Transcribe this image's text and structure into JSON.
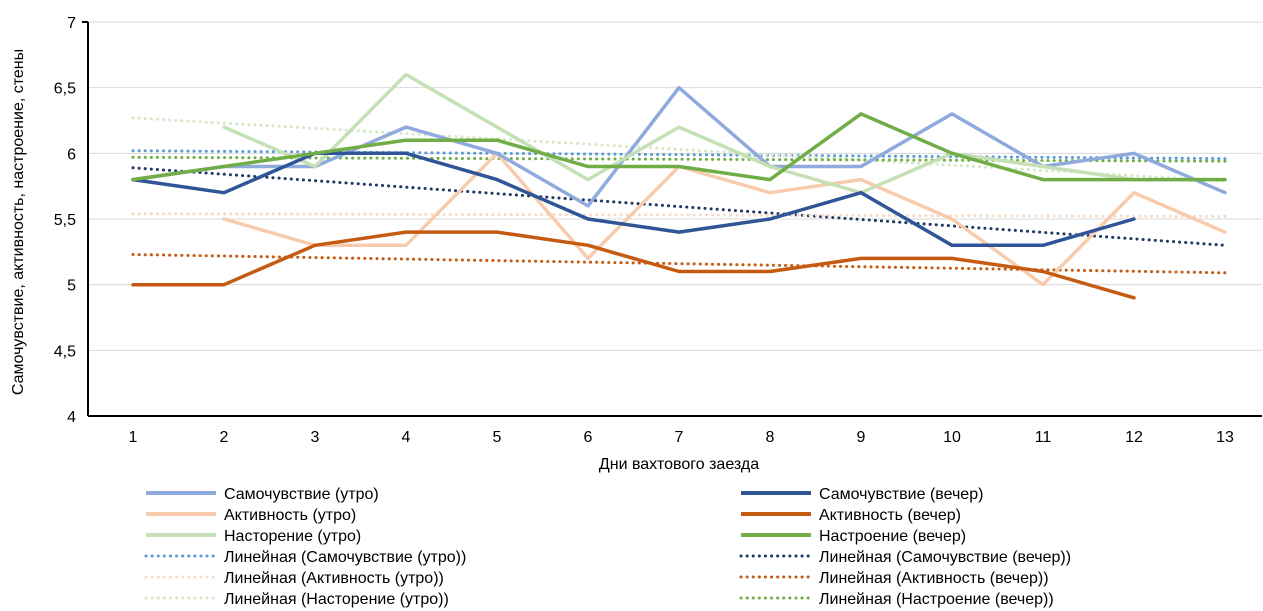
{
  "chart_data": {
    "type": "line",
    "title": "",
    "xlabel": "Дни вахтового заезда",
    "ylabel": "Самочувствие, активность, настроение, стены",
    "ylim": [
      4,
      7
    ],
    "y_ticks": [
      "4",
      "4,5",
      "5",
      "5,5",
      "6",
      "6,5",
      "7"
    ],
    "categories": [
      "1",
      "2",
      "3",
      "4",
      "5",
      "6",
      "7",
      "8",
      "9",
      "10",
      "11",
      "12",
      "13"
    ],
    "grid": "horizontal",
    "legend_position": "bottom",
    "series": [
      {
        "name": "Самочувствие (утро)",
        "color": "#8FAADC",
        "style": "solid",
        "x": [
          1,
          2,
          3,
          4,
          5,
          6,
          7,
          8,
          9,
          10,
          11,
          12,
          13
        ],
        "values": [
          5.8,
          5.9,
          5.9,
          6.2,
          6.0,
          5.6,
          6.5,
          5.9,
          5.9,
          6.3,
          5.9,
          6.0,
          5.7
        ]
      },
      {
        "name": "Самочувствие (вечер)",
        "color": "#2F5597",
        "style": "solid",
        "x": [
          1,
          2,
          3,
          4,
          5,
          6,
          7,
          8,
          9,
          10,
          11,
          12
        ],
        "values": [
          5.8,
          5.7,
          6.0,
          6.0,
          5.8,
          5.5,
          5.4,
          5.5,
          5.7,
          5.3,
          5.3,
          5.5
        ]
      },
      {
        "name": "Активность (утро)",
        "color": "#F8CBAD",
        "style": "solid",
        "x": [
          2,
          3,
          4,
          5,
          6,
          7,
          8,
          9,
          10,
          11,
          12,
          13
        ],
        "values": [
          5.5,
          5.3,
          5.3,
          6.0,
          5.2,
          5.9,
          5.7,
          5.8,
          5.5,
          5.0,
          5.7,
          5.4
        ]
      },
      {
        "name": "Активность (вечер)",
        "color": "#C55A11",
        "style": "solid",
        "x": [
          1,
          2,
          3,
          4,
          5,
          6,
          7,
          8,
          9,
          10,
          11,
          12
        ],
        "values": [
          5.0,
          5.0,
          5.3,
          5.4,
          5.4,
          5.3,
          5.1,
          5.1,
          5.2,
          5.2,
          5.1,
          4.9
        ]
      },
      {
        "name": "Насторение (утро)",
        "color": "#C5E0B4",
        "style": "solid",
        "x": [
          2,
          3,
          4,
          5,
          6,
          7,
          8,
          9,
          10,
          11,
          12,
          13
        ],
        "values": [
          6.2,
          5.9,
          6.6,
          6.2,
          5.8,
          6.2,
          5.9,
          5.7,
          6.0,
          5.9,
          5.8,
          5.8
        ]
      },
      {
        "name": "Настроение (вечер)",
        "color": "#70AD47",
        "style": "solid",
        "x": [
          1,
          2,
          3,
          4,
          5,
          6,
          7,
          8,
          9,
          10,
          11,
          12,
          13
        ],
        "values": [
          5.8,
          5.9,
          6.0,
          6.1,
          6.1,
          5.9,
          5.9,
          5.8,
          6.3,
          6.0,
          5.8,
          5.8,
          5.8
        ]
      },
      {
        "name": "Линейная (Самочувствие (утро))",
        "color": "#5B9BD5",
        "style": "dotted",
        "x": [
          1,
          13
        ],
        "values": [
          6.02,
          5.96
        ]
      },
      {
        "name": "Линейная (Самочувствие (вечер))",
        "color": "#203864",
        "style": "dotted",
        "x": [
          1,
          13
        ],
        "values": [
          5.89,
          5.3
        ]
      },
      {
        "name": "Линейная (Активность (утро))",
        "color": "#F4DCC8",
        "style": "dotted",
        "x": [
          1,
          13
        ],
        "values": [
          5.54,
          5.52
        ]
      },
      {
        "name": "Линейная (Активность (вечер))",
        "color": "#C55A11",
        "style": "dotted",
        "x": [
          1,
          13
        ],
        "values": [
          5.23,
          5.09
        ]
      },
      {
        "name": "Линейная (Насторение (утро))",
        "color": "#D5E8C8",
        "style": "dotted",
        "x": [
          1,
          13
        ],
        "values": [
          6.27,
          5.79
        ]
      },
      {
        "name": "Линейная (Настроение (вечер))",
        "color": "#70AD47",
        "style": "dotted",
        "x": [
          1,
          13
        ],
        "values": [
          5.97,
          5.94
        ]
      }
    ]
  }
}
